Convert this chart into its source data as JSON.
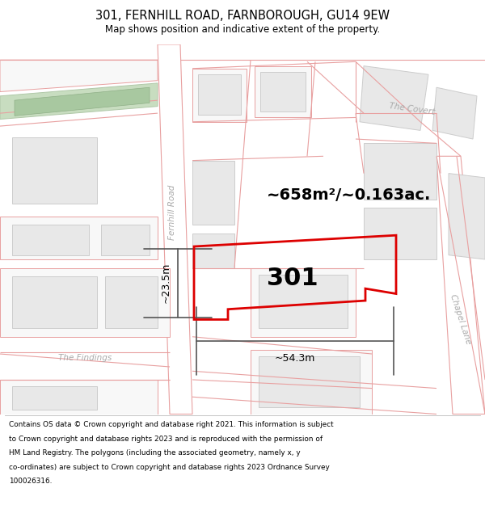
{
  "title": "301, FERNHILL ROAD, FARNBOROUGH, GU14 9EW",
  "subtitle": "Map shows position and indicative extent of the property.",
  "footer_lines": [
    "Contains OS data © Crown copyright and database right 2021. This information is subject",
    "to Crown copyright and database rights 2023 and is reproduced with the permission of",
    "HM Land Registry. The polygons (including the associated geometry, namely x, y",
    "co-ordinates) are subject to Crown copyright and database rights 2023 Ordnance Survey",
    "100026316."
  ],
  "bg_color": "#f8f8f8",
  "road_color": "#ffffff",
  "road_outline": "#e8a0a0",
  "road_outline_dark": "#d08080",
  "building_fill": "#e8e8e8",
  "building_outline": "#cccccc",
  "plot_color": "#dd0000",
  "plot_label": "301",
  "area_label": "~658m²/~0.163ac.",
  "width_label": "~54.3m",
  "height_label": "~23.5m",
  "green_fill": "#c8ddc0",
  "road_label_fernhill": "Fernhill Road",
  "road_label_chapel": "Chapel Lane",
  "label_the_findings": "The Findings",
  "label_the_covert": "The Covert",
  "dim_color": "#555555"
}
